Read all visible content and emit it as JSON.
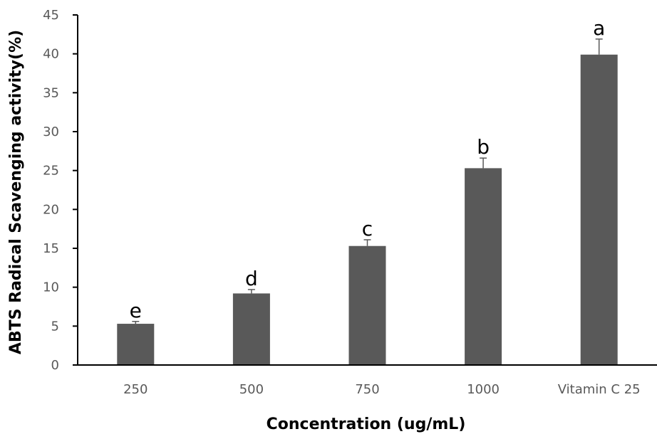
{
  "colors": {
    "bar": "#595959",
    "axis": "#000000",
    "tick_text": "#595959",
    "background": "#ffffff"
  },
  "chart_data": {
    "type": "bar",
    "title": "",
    "xlabel": "Concentration (ug/mL)",
    "ylabel": "ABTS Radical Scavenging activity(%)",
    "categories": [
      "250",
      "500",
      "750",
      "1000",
      "Vitamin C 25"
    ],
    "values": [
      5.3,
      9.2,
      15.3,
      25.3,
      39.9
    ],
    "errors": [
      0.3,
      0.5,
      0.8,
      1.3,
      2.0
    ],
    "annotations": [
      "e",
      "d",
      "c",
      "b",
      "a"
    ],
    "ylim": [
      0,
      45
    ],
    "yticks": [
      0,
      5,
      10,
      15,
      20,
      25,
      30,
      35,
      40,
      45
    ],
    "grid": false,
    "legend": "none"
  }
}
